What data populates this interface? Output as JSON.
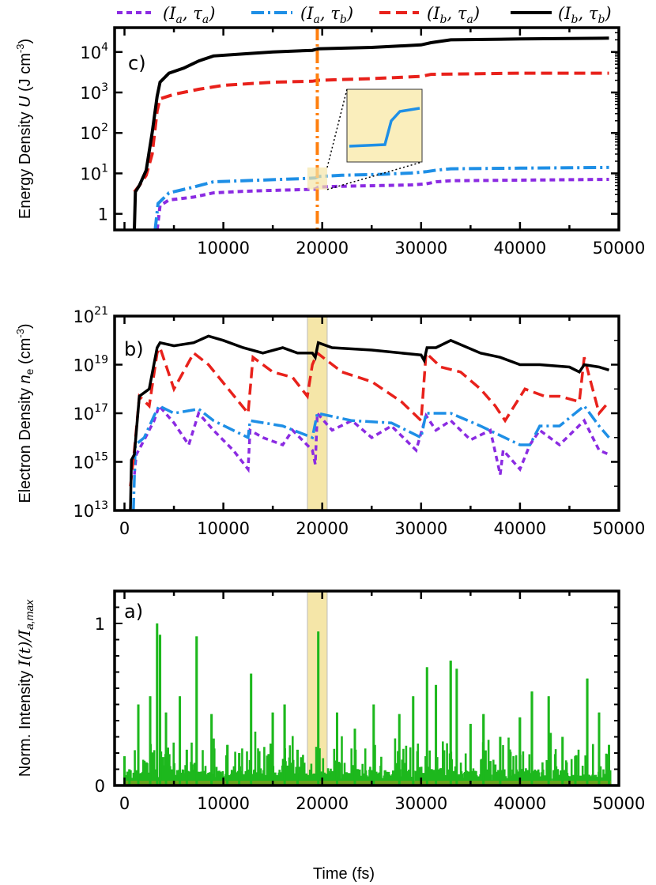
{
  "chart_data": [
    {
      "type": "line",
      "panel": "c)",
      "ylabel": "Energy Density U (J cm⁻³)",
      "yscale": "log",
      "ylim": [
        0.4,
        40000
      ],
      "xlim": [
        -1000,
        50000
      ],
      "xticks": [
        "10000",
        "20000",
        "30000",
        "40000",
        "50000"
      ],
      "yticks": [
        "1",
        "10¹",
        "10²",
        "10³",
        "10⁴"
      ],
      "marker_time": 19500,
      "inset_note": "zoom of blue curve around 19500 fs",
      "series": [
        {
          "name": "(I_a, τ_a)",
          "color": "#8b2be2",
          "style": "short-dash",
          "x": [
            3300,
            3600,
            4500,
            7000,
            9000,
            12000,
            15000,
            18500,
            19300,
            19600,
            22000,
            26000,
            29000,
            30500,
            31500,
            33000,
            40000,
            45000,
            49000
          ],
          "y": [
            0.4,
            1.6,
            2.2,
            2.6,
            3.3,
            3.6,
            3.8,
            4.0,
            4.1,
            4.6,
            4.8,
            5.0,
            5.2,
            5.5,
            6.2,
            6.6,
            6.8,
            7.0,
            7.1
          ]
        },
        {
          "name": "(I_a, τ_b)",
          "color": "#1e8fe6",
          "style": "dash-dot",
          "x": [
            3100,
            3400,
            4500,
            7000,
            9000,
            12000,
            15000,
            18500,
            19300,
            19600,
            22000,
            26000,
            29000,
            30500,
            31500,
            33000,
            40000,
            45000,
            49000
          ],
          "y": [
            0.4,
            1.8,
            3.3,
            4.6,
            6.2,
            6.6,
            7.0,
            7.5,
            7.7,
            8.4,
            9.0,
            9.5,
            10.2,
            11.0,
            12.0,
            13.0,
            13.5,
            13.8,
            14.0
          ]
        },
        {
          "name": "(I_b, τ_a)",
          "color": "#e8211b",
          "style": "dash",
          "x": [
            1000,
            1500,
            2200,
            2800,
            3300,
            3600,
            5000,
            7500,
            10000,
            15000,
            19000,
            19600,
            25000,
            30000,
            31000,
            40000,
            49000
          ],
          "y": [
            3.5,
            5.0,
            9.0,
            30,
            350,
            700,
            900,
            1200,
            1500,
            1800,
            1900,
            2000,
            2200,
            2500,
            2800,
            3000,
            3000
          ]
        },
        {
          "name": "(I_b, τ_b)",
          "color": "#000000",
          "style": "solid",
          "x": [
            1000,
            1100,
            1500,
            2200,
            2800,
            3300,
            3600,
            4500,
            6000,
            7500,
            9000,
            12000,
            15000,
            19000,
            19600,
            25000,
            30000,
            31000,
            33000,
            40000,
            49000
          ],
          "y": [
            0.4,
            3.5,
            5.0,
            12,
            100,
            800,
            1800,
            3000,
            4000,
            6000,
            8000,
            9000,
            10000,
            11000,
            12000,
            13000,
            15000,
            17000,
            20000,
            21000,
            22000
          ]
        }
      ]
    },
    {
      "type": "line",
      "panel": "b)",
      "ylabel": "Electron Density n_e (cm⁻³)",
      "yscale": "log",
      "ylim": [
        10000000000000.0,
        1e+21
      ],
      "xlim": [
        -1000,
        50000
      ],
      "xticks": [
        "0",
        "10000",
        "20000",
        "30000",
        "40000",
        "50000"
      ],
      "yticks": [
        "10¹³",
        "10¹⁵",
        "10¹⁷",
        "10¹⁹",
        "10²¹"
      ],
      "highlight": [
        18500,
        20500
      ],
      "series": [
        {
          "name": "(I_a, τ_a)",
          "color": "#8b2be2",
          "style": "short-dash",
          "x": [
            1000,
            1200,
            2000,
            3000,
            3500,
            5000,
            6500,
            7500,
            9000,
            11000,
            12500,
            12700,
            14000,
            16000,
            17000,
            19000,
            19300,
            19500,
            21000,
            23000,
            25000,
            27000,
            29500,
            30500,
            31500,
            33000,
            35000,
            37000,
            38000,
            38300,
            40000,
            41000,
            42000,
            44000,
            46500,
            48000,
            49000
          ],
          "y": [
            300000000000000.0,
            2000000000000000.0,
            8000000000000000.0,
            5e+16,
            2e+17,
            4e+16,
            5000000000000000.0,
            1e+17,
            2e+16,
            3000000000000000.0,
            500000000000000.0,
            2e+16,
            1e+16,
            5000000000000000.0,
            2e+16,
            3000000000000000.0,
            800000000000000.0,
            1e+17,
            2e+16,
            5e+16,
            1e+16,
            3e+16,
            3000000000000000.0,
            8e+16,
            2e+16,
            5e+16,
            8000000000000000.0,
            2e+16,
            300000000000000.0,
            3000000000000000.0,
            500000000000000.0,
            5000000000000000.0,
            2e+16,
            5000000000000000.0,
            5e+16,
            3000000000000000.0,
            2000000000000000.0
          ]
        },
        {
          "name": "(I_a, τ_b)",
          "color": "#1e8fe6",
          "style": "dash-dot",
          "x": [
            900,
            1100,
            2000,
            3000,
            3500,
            5000,
            7500,
            9000,
            12500,
            12700,
            16000,
            19000,
            19500,
            23000,
            27000,
            30000,
            30500,
            33000,
            36000,
            40000,
            41000,
            42000,
            44000,
            46500,
            48000,
            49000
          ],
          "y": [
            10000000000000.0,
            5000000000000000.0,
            1e+16,
            8e+16,
            2e+17,
            1e+17,
            1.5e+17,
            5e+16,
            1e+16,
            5e+16,
            3e+16,
            1e+16,
            1e+17,
            5e+16,
            4e+16,
            1e+16,
            1e+17,
            1e+17,
            3e+16,
            5000000000000000.0,
            5000000000000000.0,
            3e+16,
            3e+16,
            2e+17,
            3e+16,
            1e+16
          ]
        },
        {
          "name": "(I_b, τ_a)",
          "color": "#e8211b",
          "style": "dash",
          "x": [
            600,
            1000,
            1500,
            2500,
            3300,
            3600,
            5000,
            7000,
            8500,
            10500,
            12500,
            13000,
            15000,
            17000,
            18500,
            19000,
            19500,
            22000,
            25000,
            28000,
            30000,
            30500,
            32000,
            34000,
            36000,
            37500,
            38500,
            40500,
            42500,
            44000,
            46000,
            46500,
            48000,
            49000
          ],
          "y": [
            100000000000000.0,
            3000000000000000.0,
            5e+17,
            2e+17,
            3e+19,
            5e+19,
            1e+18,
            3e+19,
            1e+19,
            1e+18,
            1e+17,
            2e+19,
            5e+18,
            3e+18,
            5e+17,
            1e+19,
            3e+19,
            5e+18,
            2e+18,
            3e+17,
            5e+16,
            3e+19,
            8e+18,
            5e+18,
            1e+18,
            2e+17,
            5e+16,
            1e+18,
            5e+17,
            5e+17,
            3e+17,
            2e+19,
            1e+17,
            3e+17
          ]
        },
        {
          "name": "(I_b, τ_b)",
          "color": "#000000",
          "style": "solid",
          "x": [
            600,
            700,
            1000,
            1500,
            2500,
            3300,
            3600,
            5000,
            7000,
            8500,
            10000,
            12000,
            14000,
            16000,
            17500,
            19000,
            19300,
            19600,
            21000,
            25000,
            28000,
            30000,
            30300,
            30600,
            31500,
            33000,
            36000,
            38000,
            40000,
            42000,
            45000,
            46000,
            46500,
            48000,
            49000
          ],
          "y": [
            10000000000000.0,
            1200000000000000.0,
            2000000000000000.0,
            5e+17,
            1e+18,
            5e+19,
            8e+19,
            6e+19,
            8e+19,
            1.5e+20,
            1e+20,
            5e+19,
            3e+19,
            5e+19,
            3e+19,
            3e+19,
            2e+19,
            8e+19,
            5e+19,
            4e+19,
            3e+19,
            2.5e+19,
            1.5e+19,
            5e+19,
            5e+19,
            1e+20,
            3e+19,
            2e+19,
            1e+19,
            1e+19,
            8e+18,
            5e+18,
            1e+19,
            8e+18,
            6e+18
          ]
        }
      ]
    },
    {
      "type": "bar",
      "panel": "a)",
      "ylabel": "Norm. Intensity I(t)/I_a,max",
      "ylim": [
        0,
        1.2
      ],
      "xlim": [
        -1000,
        50000
      ],
      "xticks": [
        "0",
        "10000",
        "20000",
        "30000",
        "40000",
        "50000"
      ],
      "yticks": [
        "0",
        "1"
      ],
      "highlight": [
        18500,
        20500
      ],
      "color": "#1db81d",
      "xlabel": "Time (fs)",
      "peaks": {
        "x": [
          0,
          500,
          1400,
          2600,
          3300,
          3600,
          4200,
          5600,
          6300,
          7300,
          8800,
          10400,
          11600,
          12800,
          15000,
          16200,
          17500,
          19600,
          21500,
          23300,
          25200,
          27800,
          29200,
          30600,
          31500,
          33000,
          33600,
          35000,
          36300,
          38000,
          40000,
          41200,
          42900,
          44300,
          45600,
          46800,
          48000,
          49000
        ],
        "y": [
          0.18,
          0.1,
          0.5,
          0.55,
          1.0,
          0.93,
          0.45,
          0.55,
          0.22,
          0.92,
          0.44,
          0.25,
          0.2,
          0.69,
          0.45,
          0.5,
          0.22,
          0.95,
          0.45,
          0.35,
          0.5,
          0.44,
          0.55,
          0.73,
          0.62,
          0.77,
          0.72,
          0.38,
          0.44,
          0.3,
          0.42,
          0.58,
          0.55,
          0.3,
          0.18,
          0.66,
          0.45,
          0.25
        ]
      }
    }
  ],
  "legend": [
    {
      "label": "(Iₐ, τₐ)",
      "color": "#8b2be2"
    },
    {
      "label": "(Iₐ, τ_b)",
      "color": "#1e8fe6"
    },
    {
      "label": "(I_b, τₐ)",
      "color": "#e8211b"
    },
    {
      "label": "(I_b, τ_b)",
      "color": "#000000"
    }
  ],
  "labels": {
    "legend_items": [
      {
        "I": "I",
        "Isub": "a",
        "T": "τ",
        "Tsub": "a"
      },
      {
        "I": "I",
        "Isub": "a",
        "T": "τ",
        "Tsub": "b"
      },
      {
        "I": "I",
        "Isub": "b",
        "T": "τ",
        "Tsub": "a"
      },
      {
        "I": "I",
        "Isub": "b",
        "T": "τ",
        "Tsub": "b"
      }
    ],
    "panel_c": "c)",
    "panel_b": "b)",
    "panel_a": "a)",
    "c_ylabel_pre": "Energy Density ",
    "c_ylabel_var": "U",
    "c_ylabel_unit": " (J cm",
    "c_ylabel_exp": "-3",
    "c_ylabel_close": ")",
    "b_ylabel_pre": "Electron Density ",
    "b_ylabel_var": "n",
    "b_ylabel_sub": "e",
    "b_ylabel_unit": " (cm",
    "b_ylabel_exp": "-3",
    "b_ylabel_close": ")",
    "a_ylabel_pre": "Norm. Intensity ",
    "a_ylabel_var": "I(t)/I",
    "a_ylabel_sub": "a,max",
    "xlabel": "Time (fs)",
    "c_yticks": [
      {
        "base": "10",
        "exp": "4"
      },
      {
        "base": "10",
        "exp": "3"
      },
      {
        "base": "10",
        "exp": "2"
      },
      {
        "base": "10",
        "exp": "1"
      },
      {
        "base": "1",
        "exp": ""
      }
    ],
    "b_yticks": [
      {
        "base": "10",
        "exp": "21"
      },
      {
        "base": "10",
        "exp": "19"
      },
      {
        "base": "10",
        "exp": "17"
      },
      {
        "base": "10",
        "exp": "15"
      },
      {
        "base": "10",
        "exp": "13"
      }
    ],
    "a_yticks": [
      "1",
      "0"
    ],
    "c_xticks": [
      "10000",
      "20000",
      "30000",
      "40000",
      "50000"
    ],
    "b_xticks": [
      "0",
      "10000",
      "20000",
      "30000",
      "40000",
      "50000"
    ],
    "a_xticks": [
      "0",
      "10000",
      "20000",
      "30000",
      "40000",
      "50000"
    ]
  }
}
